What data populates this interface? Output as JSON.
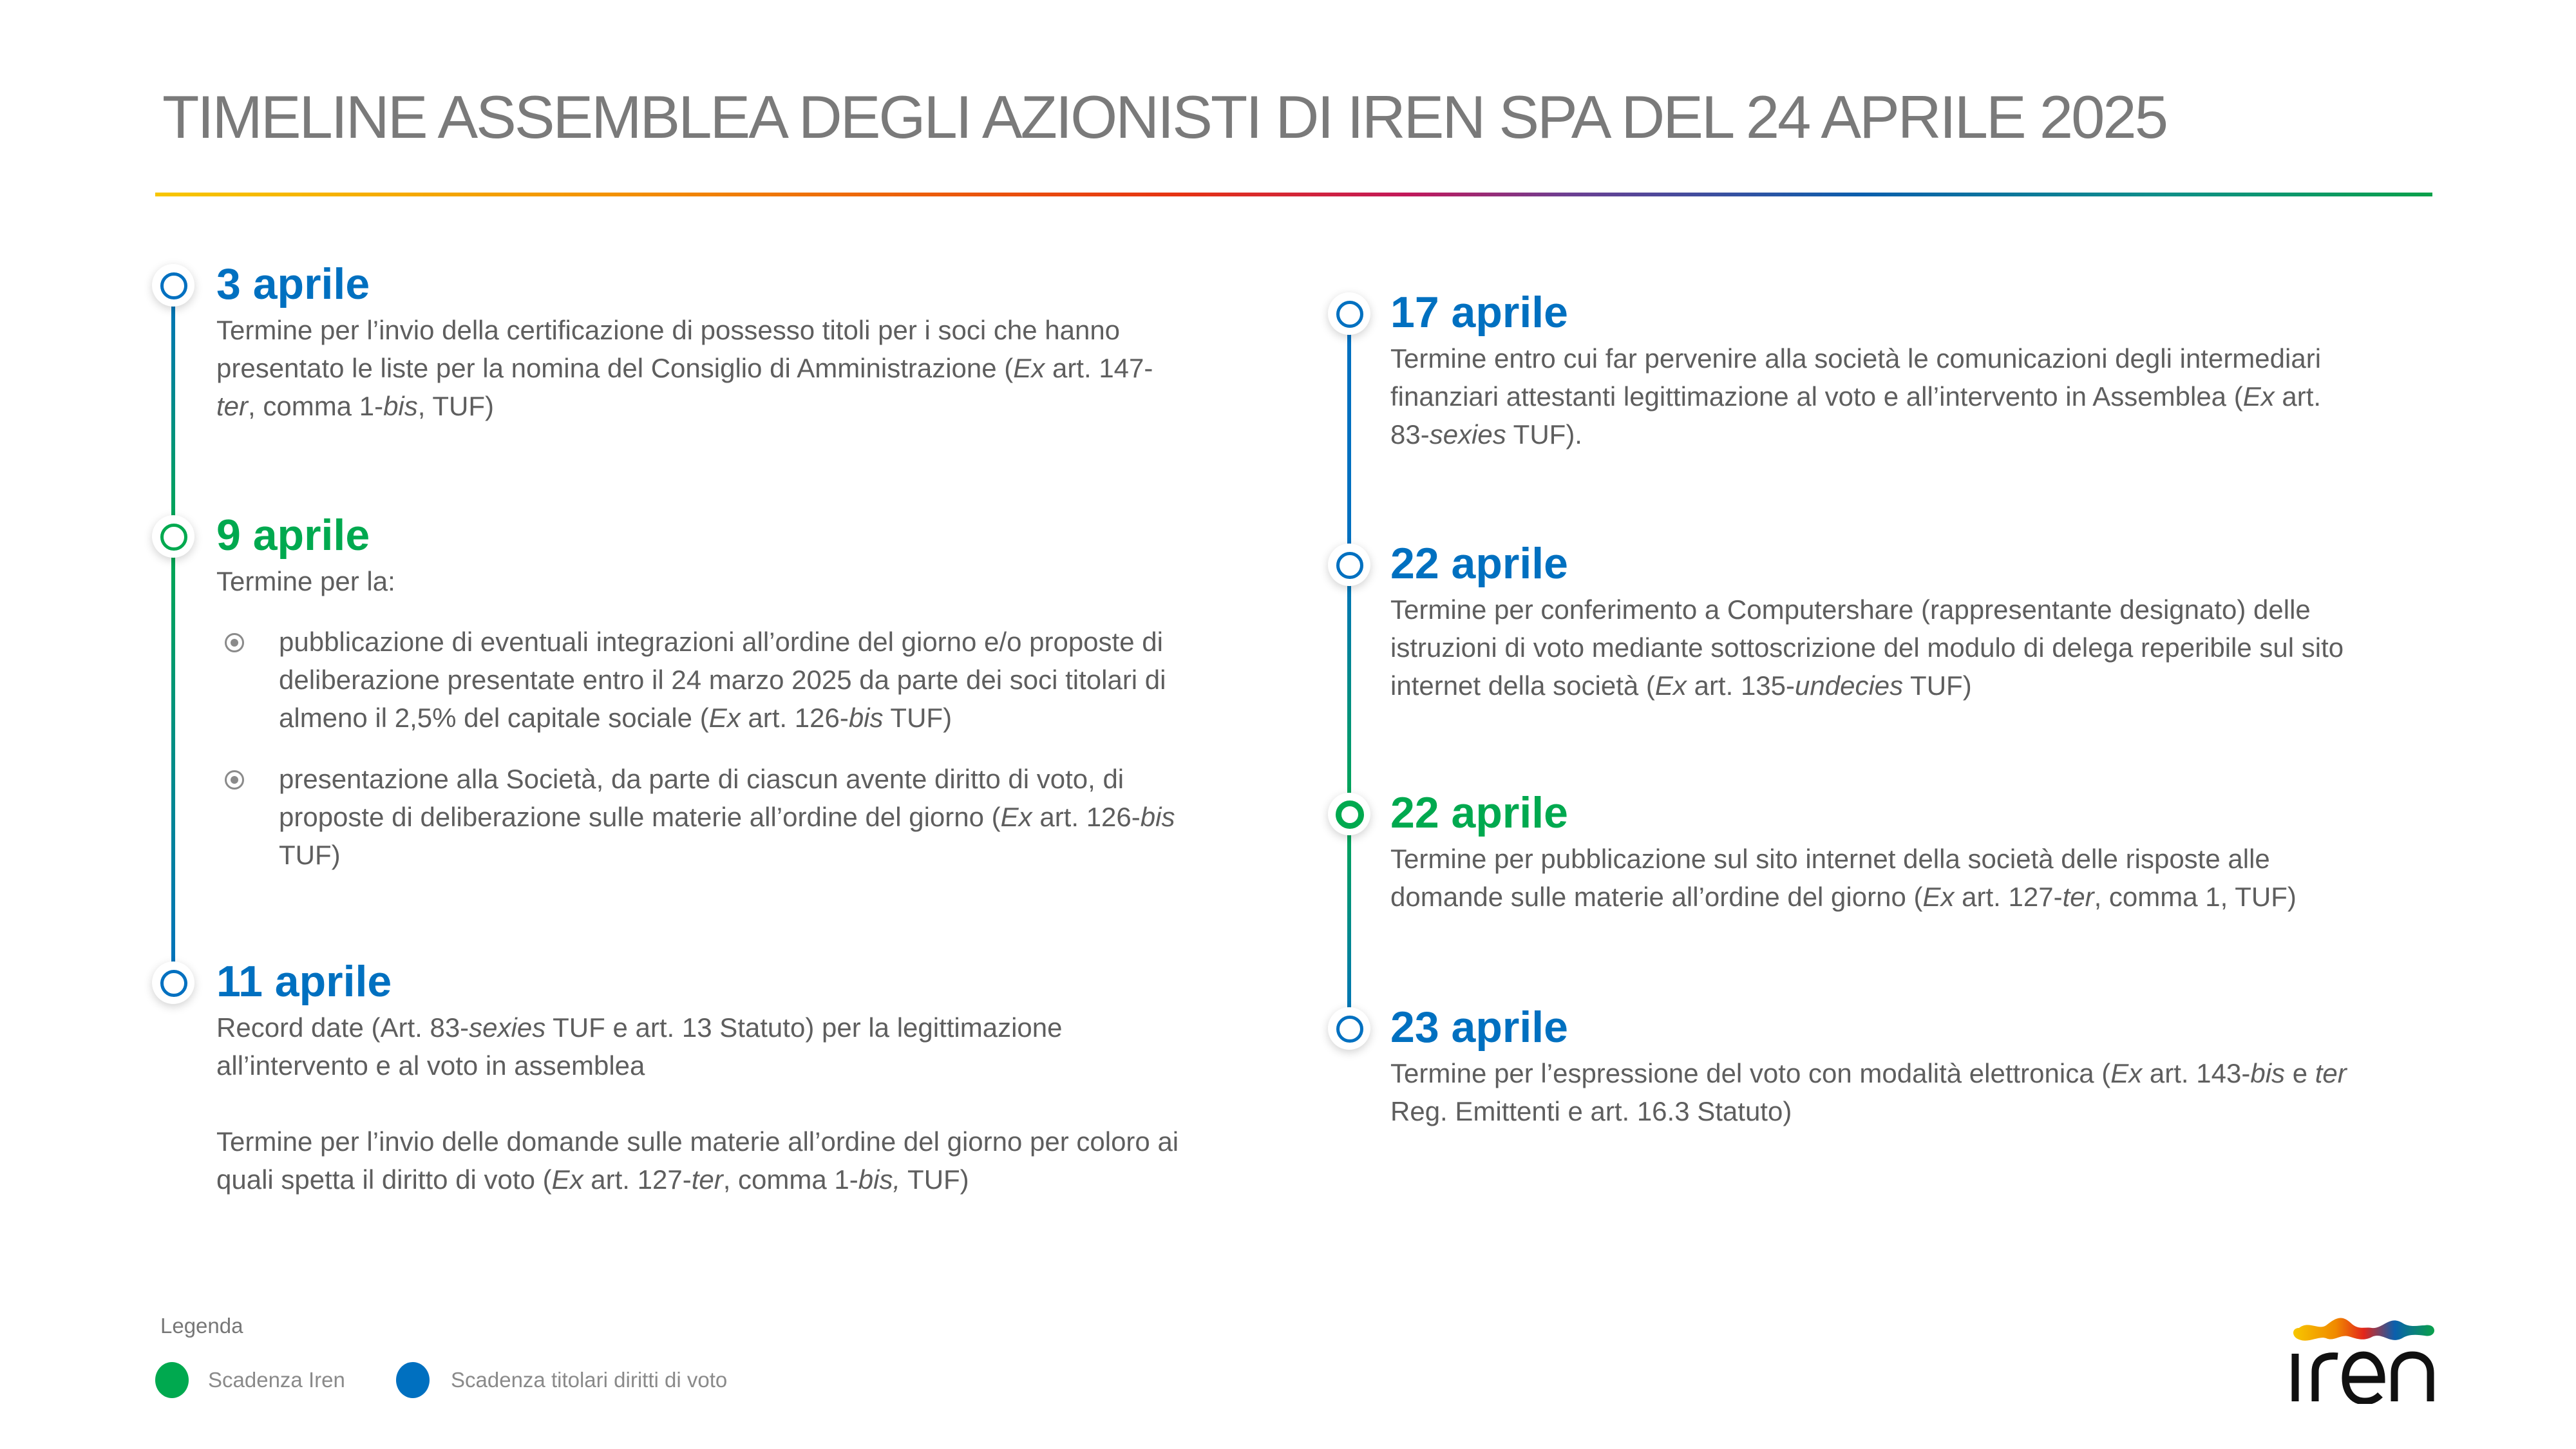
{
  "title": "TIMELINE ASSEMBLEA DEGLI AZIONISTI DI IREN SPA DEL 24 APRILE 2025",
  "colors": {
    "iren": "#00a94f",
    "voters": "#0070c0",
    "text": "#5e5e5e"
  },
  "left": [
    {
      "date": "3 aprile",
      "type": "voters",
      "body": [
        [
          "Termine per l’invio della certificazione di possesso titoli per i soci che hanno\npresentato le liste per la nomina del Consiglio di Amministrazione (",
          0
        ],
        [
          "Ex",
          1
        ],
        [
          " art. 147-\n",
          0
        ],
        [
          "ter",
          1
        ],
        [
          ", comma 1-",
          0
        ],
        [
          "bis",
          1
        ],
        [
          ", TUF)",
          0
        ]
      ]
    },
    {
      "date": "9 aprile",
      "type": "iren",
      "intro": "Termine per la:",
      "bullets": [
        [
          [
            "pubblicazione di eventuali integrazioni all’ordine del giorno e/o proposte di\ndeliberazione presentate entro il 24 marzo 2025 da parte dei soci titolari di\nalmeno il 2,5% del capitale sociale (",
            0
          ],
          [
            "Ex",
            1
          ],
          [
            " art. 126-",
            0
          ],
          [
            "bis",
            1
          ],
          [
            " TUF)",
            0
          ]
        ],
        [
          [
            "presentazione alla Società, da parte di ciascun avente diritto di voto, di\nproposte di deliberazione sulle materie all’ordine del giorno (",
            0
          ],
          [
            "Ex",
            1
          ],
          [
            " art. 126-",
            0
          ],
          [
            "bis",
            1
          ],
          [
            "\nTUF)",
            0
          ]
        ]
      ]
    },
    {
      "date": "11 aprile",
      "type": "voters",
      "body": [
        [
          "Record date (Art. 83-",
          0
        ],
        [
          "sexies",
          1
        ],
        [
          " TUF e art. 13 Statuto) per la legittimazione\nall’intervento e al voto in assemblea\n\nTermine per l’invio delle domande sulle materie all’ordine del giorno per coloro ai\nquali spetta il diritto di voto (",
          0
        ],
        [
          "Ex",
          1
        ],
        [
          " art. 127-",
          0
        ],
        [
          "ter",
          1
        ],
        [
          ", comma 1-",
          0
        ],
        [
          "bis,",
          1
        ],
        [
          " TUF)",
          0
        ]
      ]
    }
  ],
  "right": [
    {
      "date": "17 aprile",
      "type": "voters",
      "body": [
        [
          "Termine entro cui far pervenire alla società le comunicazioni degli intermediari\nfinanziari attestanti legittimazione al voto e all’intervento in Assemblea (",
          0
        ],
        [
          "Ex",
          1
        ],
        [
          " art.\n83-",
          0
        ],
        [
          "sexies",
          1
        ],
        [
          " TUF).",
          0
        ]
      ]
    },
    {
      "date": "22 aprile",
      "type": "voters",
      "body": [
        [
          "Termine per conferimento a Computershare (rappresentante designato) delle\nistruzioni di voto mediante sottoscrizione del modulo di delega reperibile sul sito\ninternet della società (",
          0
        ],
        [
          "Ex",
          1
        ],
        [
          " art. 135-",
          0
        ],
        [
          "undecies",
          1
        ],
        [
          " TUF)",
          0
        ]
      ]
    },
    {
      "date": "22 aprile",
      "type": "iren",
      "body": [
        [
          "Termine per pubblicazione sul sito internet della società delle risposte alle\ndomande sulle materie all’ordine del giorno (",
          0
        ],
        [
          "Ex",
          1
        ],
        [
          " art. 127-",
          0
        ],
        [
          "ter",
          1
        ],
        [
          ", comma 1, TUF)",
          0
        ]
      ]
    },
    {
      "date": "23 aprile",
      "type": "voters",
      "body": [
        [
          "Termine per l’espressione del voto con modalità elettronica (",
          0
        ],
        [
          "Ex",
          1
        ],
        [
          " art. 143-",
          0
        ],
        [
          "bis",
          1
        ],
        [
          " e ",
          0
        ],
        [
          "ter",
          1
        ],
        [
          "\nReg. Emittenti e art. 16.3 Statuto)",
          0
        ]
      ]
    }
  ],
  "legend": {
    "title": "Legenda",
    "items": [
      {
        "label": "Scadenza Iren",
        "type": "iren"
      },
      {
        "label": "Scadenza titolari diritti di voto",
        "type": "voters"
      }
    ]
  },
  "logo": {
    "text": "iren"
  }
}
